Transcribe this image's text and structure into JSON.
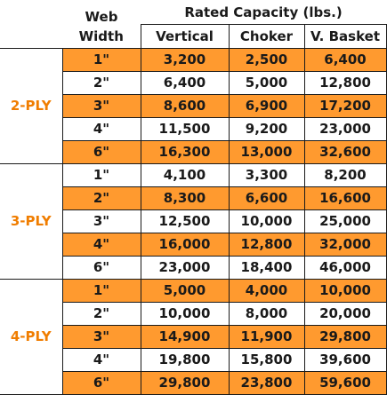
{
  "header": {
    "web": "Web",
    "width": "Width",
    "rated_capacity": "Rated Capacity (lbs.)",
    "columns": [
      "Vertical",
      "Choker",
      "V. Basket"
    ]
  },
  "colors": {
    "orange_row": "#ff9a2f",
    "ply_label": "#f07d00"
  },
  "groups": [
    {
      "label": "2-PLY",
      "rows": [
        {
          "width": "1\"",
          "vertical": "3,200",
          "choker": "2,500",
          "basket": "6,400",
          "shade": "orange"
        },
        {
          "width": "2\"",
          "vertical": "6,400",
          "choker": "5,000",
          "basket": "12,800",
          "shade": "white"
        },
        {
          "width": "3\"",
          "vertical": "8,600",
          "choker": "6,900",
          "basket": "17,200",
          "shade": "orange"
        },
        {
          "width": "4\"",
          "vertical": "11,500",
          "choker": "9,200",
          "basket": "23,000",
          "shade": "white"
        },
        {
          "width": "6\"",
          "vertical": "16,300",
          "choker": "13,000",
          "basket": "32,600",
          "shade": "orange"
        }
      ]
    },
    {
      "label": "3-PLY",
      "rows": [
        {
          "width": "1\"",
          "vertical": "4,100",
          "choker": "3,300",
          "basket": "8,200",
          "shade": "white"
        },
        {
          "width": "2\"",
          "vertical": "8,300",
          "choker": "6,600",
          "basket": "16,600",
          "shade": "orange"
        },
        {
          "width": "3\"",
          "vertical": "12,500",
          "choker": "10,000",
          "basket": "25,000",
          "shade": "white"
        },
        {
          "width": "4\"",
          "vertical": "16,000",
          "choker": "12,800",
          "basket": "32,000",
          "shade": "orange"
        },
        {
          "width": "6\"",
          "vertical": "23,000",
          "choker": "18,400",
          "basket": "46,000",
          "shade": "white"
        }
      ]
    },
    {
      "label": "4-PLY",
      "rows": [
        {
          "width": "1\"",
          "vertical": "5,000",
          "choker": "4,000",
          "basket": "10,000",
          "shade": "orange"
        },
        {
          "width": "2\"",
          "vertical": "10,000",
          "choker": "8,000",
          "basket": "20,000",
          "shade": "white"
        },
        {
          "width": "3\"",
          "vertical": "14,900",
          "choker": "11,900",
          "basket": "29,800",
          "shade": "orange"
        },
        {
          "width": "4\"",
          "vertical": "19,800",
          "choker": "15,800",
          "basket": "39,600",
          "shade": "white"
        },
        {
          "width": "6\"",
          "vertical": "29,800",
          "choker": "23,800",
          "basket": "59,600",
          "shade": "orange"
        }
      ]
    }
  ]
}
